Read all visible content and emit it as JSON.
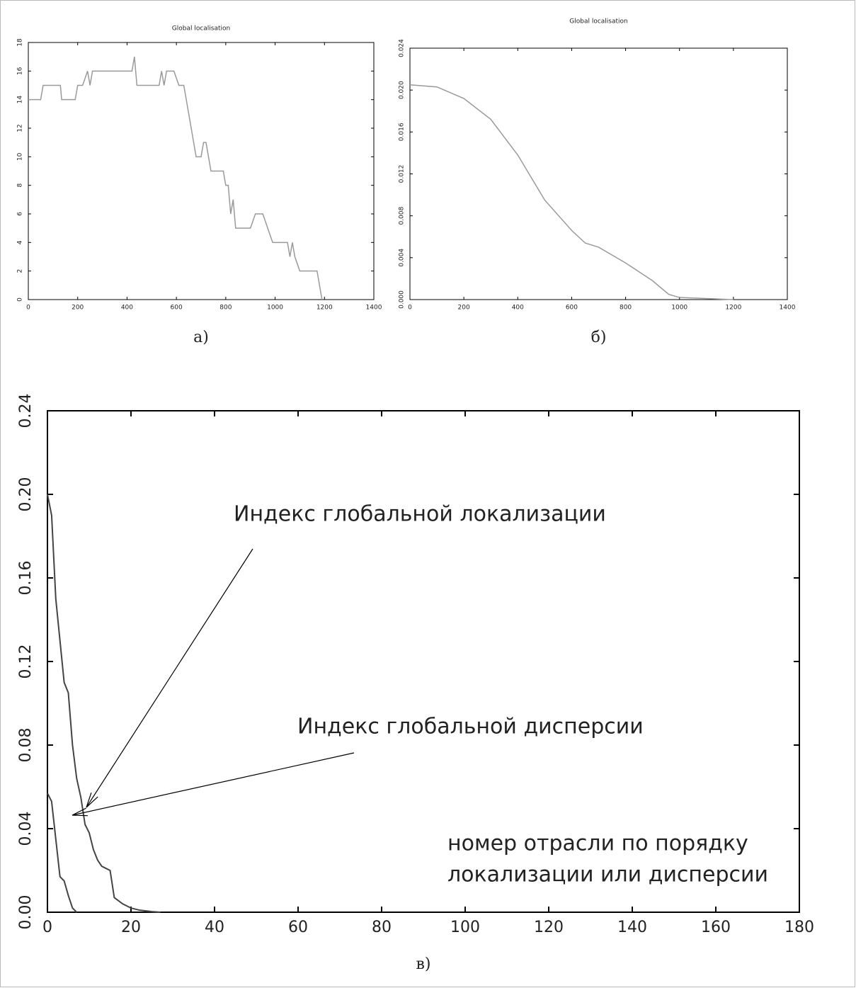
{
  "chart_data": [
    {
      "type": "line",
      "title": "Global localisation",
      "caption": "а)",
      "xlim": [
        0,
        1400
      ],
      "xticks": [
        0,
        200,
        400,
        600,
        800,
        1000,
        1200,
        1400
      ],
      "ylim": [
        0,
        18
      ],
      "yticks": [
        0,
        2,
        4,
        6,
        8,
        10,
        12,
        14,
        16,
        18
      ],
      "series": [
        {
          "color": "#9a9a9a",
          "x": [
            0,
            50,
            60,
            130,
            135,
            190,
            200,
            220,
            240,
            250,
            260,
            420,
            430,
            440,
            530,
            540,
            550,
            560,
            590,
            610,
            630,
            660,
            680,
            700,
            710,
            720,
            740,
            790,
            800,
            810,
            820,
            830,
            840,
            900,
            920,
            950,
            970,
            990,
            1050,
            1060,
            1070,
            1080,
            1100,
            1170,
            1180,
            1190
          ],
          "values": [
            14,
            14,
            15,
            15,
            14,
            14,
            15,
            15,
            16,
            15,
            16,
            16,
            17,
            15,
            15,
            16,
            15,
            16,
            16,
            15,
            15,
            12,
            10,
            10,
            11,
            11,
            9,
            9,
            8,
            8,
            6,
            7,
            5,
            5,
            6,
            6,
            5,
            4,
            4,
            3,
            4,
            3,
            2,
            2,
            1,
            0
          ]
        }
      ]
    },
    {
      "type": "line",
      "title": "Global localisation",
      "caption": "б)",
      "xlim": [
        0,
        1400
      ],
      "xticks": [
        0,
        200,
        400,
        600,
        800,
        1000,
        1200,
        1400
      ],
      "ylim": [
        0,
        0.024
      ],
      "yticks": [
        {
          "value": 0,
          "label": "0.000"
        },
        0.004,
        0.008,
        0.012,
        0.016,
        {
          "value": 0.02,
          "label": "0.020"
        },
        0.024
      ],
      "series": [
        {
          "color": "#9a9a9a",
          "x": [
            0,
            100,
            200,
            300,
            400,
            500,
            600,
            650,
            700,
            800,
            900,
            960,
            1000,
            1100,
            1200
          ],
          "values": [
            0.0205,
            0.0203,
            0.0192,
            0.0172,
            0.0138,
            0.0095,
            0.0066,
            0.0054,
            0.005,
            0.0035,
            0.0018,
            0.0005,
            0.0002,
            0.0001,
            0
          ]
        }
      ]
    },
    {
      "type": "line",
      "caption": "в)",
      "annotations": [
        "Индекс глобальной локализации",
        "Индекс глобальной дисперсии",
        "номер отрасли по порядку",
        "локализации или дисперсии"
      ],
      "xlim": [
        0,
        180
      ],
      "xticks": [
        0,
        20,
        40,
        60,
        80,
        100,
        120,
        140,
        160,
        180
      ],
      "ylim": [
        0,
        0.24
      ],
      "yticks": [
        {
          "value": 0,
          "label": "0.00"
        },
        0.04,
        0.08,
        0.12,
        0.16,
        {
          "value": 0.2,
          "label": "0.20"
        },
        0.24
      ],
      "series": [
        {
          "color": "#444444",
          "x": [
            0,
            1,
            2,
            3,
            4,
            5,
            6,
            7,
            8,
            9,
            10,
            11,
            12,
            13,
            14,
            15,
            16,
            18,
            20,
            22,
            25,
            27
          ],
          "values": [
            0.2,
            0.19,
            0.15,
            0.13,
            0.11,
            0.105,
            0.08,
            0.064,
            0.055,
            0.042,
            0.038,
            0.03,
            0.025,
            0.022,
            0.021,
            0.02,
            0.007,
            0.004,
            0.002,
            0.001,
            0.0003,
            0
          ]
        },
        {
          "color": "#444444",
          "x": [
            0,
            1,
            2,
            3,
            4,
            5,
            6,
            7
          ],
          "values": [
            0.057,
            0.053,
            0.035,
            0.017,
            0.015,
            0.008,
            0.002,
            0
          ]
        }
      ]
    }
  ]
}
